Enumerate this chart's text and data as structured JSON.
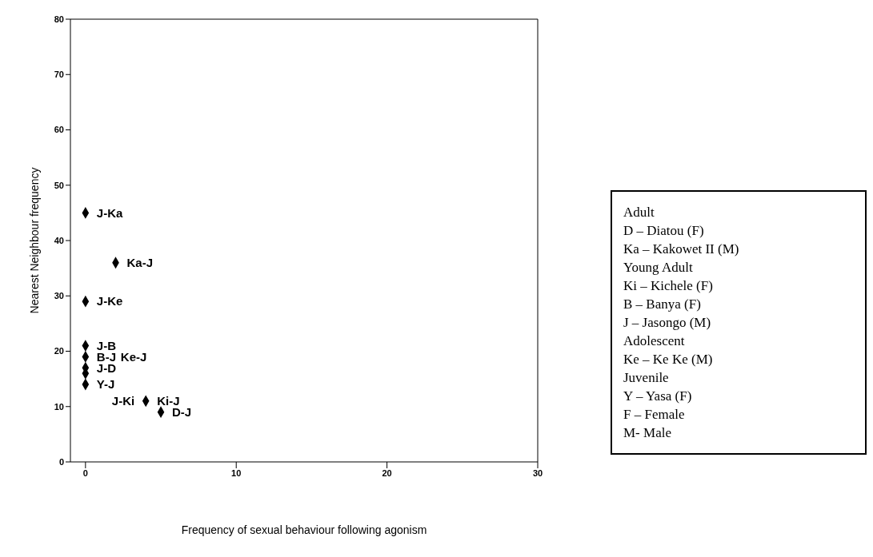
{
  "chart_data": {
    "type": "scatter",
    "xlabel": "Frequency of sexual behaviour following agonism",
    "ylabel": "Nearest Neighbour frequency",
    "x": [
      0,
      2,
      0,
      0,
      0,
      0,
      0,
      0,
      4,
      5
    ],
    "values": [
      45,
      36,
      29,
      21,
      19,
      17,
      16,
      14,
      11,
      9
    ],
    "color": "#000000",
    "marker": "diamond",
    "xlim": [
      -1,
      30
    ],
    "xticks": [
      0,
      10,
      20,
      30
    ],
    "ylim": [
      0,
      80
    ],
    "yticks": [
      0,
      10,
      20,
      30,
      40,
      50,
      60,
      70,
      80
    ],
    "annotations": [
      {
        "text": "J-Ka",
        "x": 0,
        "y": 45
      },
      {
        "text": "Ka-J",
        "x": 2,
        "y": 36
      },
      {
        "text": "J-Ke",
        "x": 0,
        "y": 29
      },
      {
        "text": "J-B",
        "x": 0,
        "y": 21
      },
      {
        "text": "B-J",
        "x": 0,
        "y": 19
      },
      {
        "text": "Ke-J",
        "x": 0,
        "y": 19
      },
      {
        "text": "J-D",
        "x": 0,
        "y": 17
      },
      {
        "text": "Y-J",
        "x": 0,
        "y": 14
      },
      {
        "text": "Ki-J",
        "x": 4,
        "y": 11
      },
      {
        "text": "J-Ki",
        "x": 4,
        "y": 11
      },
      {
        "text": "D-J",
        "x": 5,
        "y": 9
      },
      "Adult",
      "D – Diatou  (F)",
      "Ka – Kakowet II (M)",
      "Young Adult",
      "Ki – Kichele (F)",
      "B – Banya (F)",
      "J – Jasongo (M)",
      "Adolescent",
      "Ke – Ke Ke (M)",
      "Juvenile",
      "Y – Yasa (F)",
      "F – Female",
      "M- Male"
    ]
  }
}
